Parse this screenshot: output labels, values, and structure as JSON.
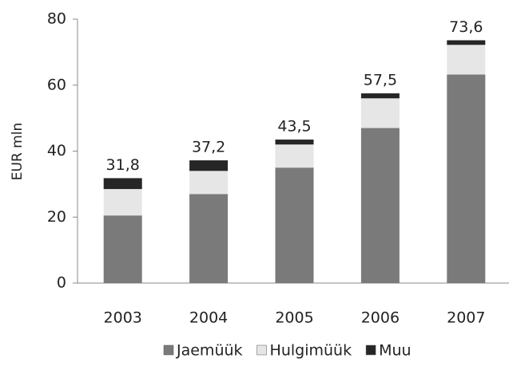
{
  "chart_data": {
    "type": "stacked_bar",
    "y_label": "EUR mln",
    "categories": [
      "2003",
      "2004",
      "2005",
      "2006",
      "2007"
    ],
    "series": [
      {
        "name": "Jaemüük",
        "color": "#7a7a7a",
        "values": [
          20.5,
          27.0,
          35.0,
          47.0,
          63.2
        ]
      },
      {
        "name": "Hulgimüük",
        "color": "#e6e6e6",
        "values": [
          8.0,
          7.0,
          7.0,
          9.0,
          9.0
        ]
      },
      {
        "name": "Muu",
        "color": "#262626",
        "values": [
          3.3,
          3.2,
          1.5,
          1.5,
          1.4
        ]
      }
    ],
    "totals": [
      31.8,
      37.2,
      43.5,
      57.5,
      73.6
    ],
    "value_labels": [
      "31,8",
      "37,2",
      "43,5",
      "57,5",
      "73,6"
    ],
    "ylim": [
      0,
      80
    ],
    "yticks": [
      0,
      20,
      40,
      60,
      80
    ],
    "legend": "bottom"
  }
}
